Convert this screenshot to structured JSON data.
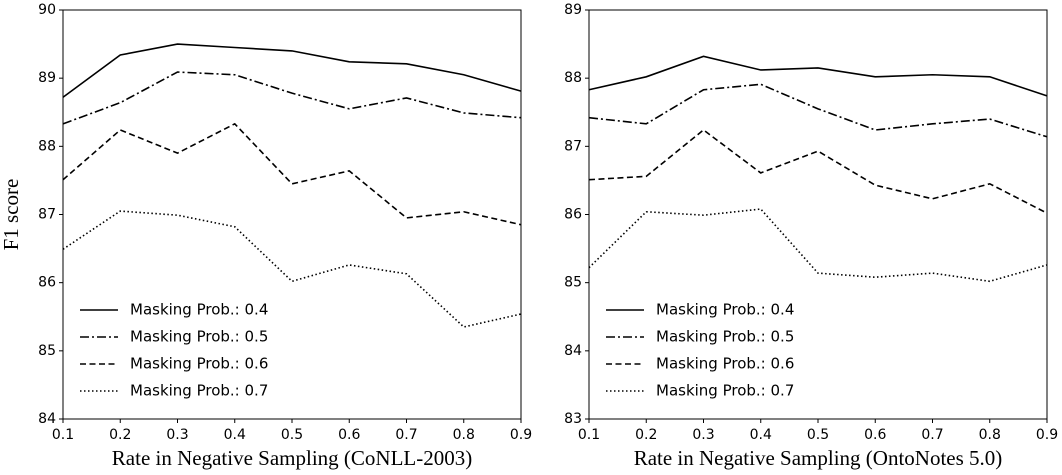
{
  "chart_data": [
    {
      "type": "line",
      "xlabel": "Rate in Negative Sampling (CoNLL-2003)",
      "ylabel": "F1 score",
      "x": [
        0.1,
        0.2,
        0.3,
        0.4,
        0.5,
        0.6,
        0.7,
        0.8,
        0.9
      ],
      "series": [
        {
          "name": "Masking Prob.: 0.4",
          "color": "#000000",
          "linestyle": "solid",
          "values": [
            88.72,
            89.34,
            89.5,
            89.45,
            89.4,
            89.24,
            89.21,
            89.05,
            88.81
          ]
        },
        {
          "name": "Masking Prob.: 0.5",
          "color": "#000000",
          "linestyle": "dashdot",
          "values": [
            88.33,
            88.64,
            89.09,
            89.05,
            88.78,
            88.55,
            88.71,
            88.49,
            88.42
          ]
        },
        {
          "name": "Masking Prob.: 0.6",
          "color": "#000000",
          "linestyle": "dashed",
          "values": [
            87.51,
            88.24,
            87.9,
            88.33,
            87.45,
            87.64,
            86.95,
            87.04,
            86.85
          ]
        },
        {
          "name": "Masking Prob.: 0.7",
          "color": "#000000",
          "linestyle": "dotted",
          "values": [
            86.49,
            87.05,
            86.99,
            86.82,
            86.02,
            86.26,
            86.13,
            85.35,
            85.54
          ]
        }
      ],
      "xlim": [
        0.1,
        0.9
      ],
      "xticks": [
        0.1,
        0.2,
        0.3,
        0.4,
        0.5,
        0.6,
        0.7,
        0.8,
        0.9
      ],
      "ylim": [
        84,
        90
      ],
      "yticks": [
        84,
        85,
        86,
        87,
        88,
        89,
        90
      ],
      "legend": "lower left",
      "grid": false
    },
    {
      "type": "line",
      "xlabel": "Rate in Negative Sampling (OntoNotes 5.0)",
      "x": [
        0.1,
        0.2,
        0.3,
        0.4,
        0.5,
        0.6,
        0.7,
        0.8,
        0.9
      ],
      "series": [
        {
          "name": "Masking Prob.: 0.4",
          "color": "#000000",
          "linestyle": "solid",
          "values": [
            87.83,
            88.02,
            88.32,
            88.12,
            88.15,
            88.02,
            88.05,
            88.02,
            87.74
          ]
        },
        {
          "name": "Masking Prob.: 0.5",
          "color": "#000000",
          "linestyle": "dashdot",
          "values": [
            87.42,
            87.33,
            87.83,
            87.91,
            87.55,
            87.24,
            87.33,
            87.4,
            87.14
          ]
        },
        {
          "name": "Masking Prob.: 0.6",
          "color": "#000000",
          "linestyle": "dashed",
          "values": [
            86.51,
            86.56,
            87.24,
            86.61,
            86.93,
            86.43,
            86.23,
            86.45,
            86.02
          ]
        },
        {
          "name": "Masking Prob.: 0.7",
          "color": "#000000",
          "linestyle": "dotted",
          "values": [
            85.22,
            86.04,
            85.99,
            86.08,
            85.14,
            85.08,
            85.14,
            85.02,
            85.26
          ]
        }
      ],
      "xlim": [
        0.1,
        0.9
      ],
      "xticks": [
        0.1,
        0.2,
        0.3,
        0.4,
        0.5,
        0.6,
        0.7,
        0.8,
        0.9
      ],
      "ylim": [
        83,
        89
      ],
      "yticks": [
        83,
        84,
        85,
        86,
        87,
        88,
        89
      ],
      "legend": "lower left",
      "grid": false
    }
  ]
}
